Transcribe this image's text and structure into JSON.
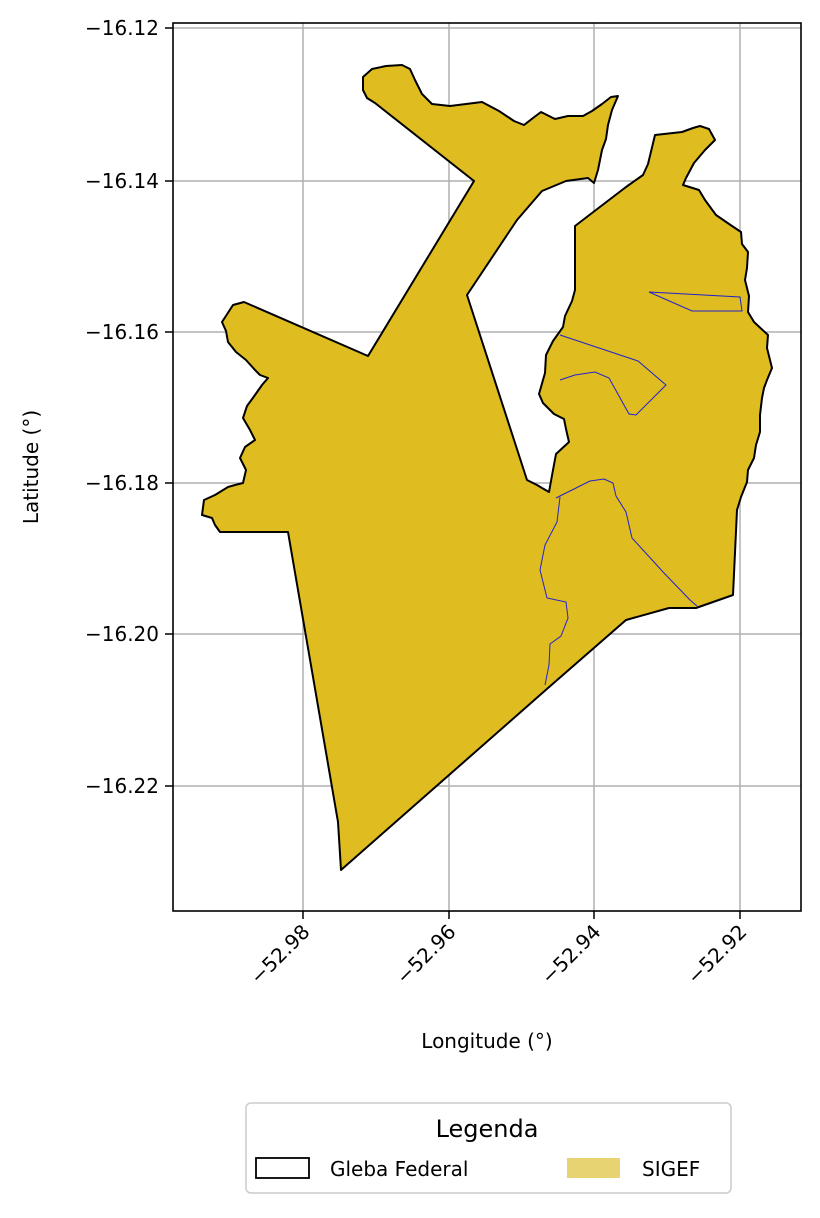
{
  "map": {
    "xlabel": "Longitude (°)",
    "ylabel": "Latitude (°)",
    "xlim": [
      -52.998,
      -52.912
    ],
    "ylim": [
      -16.237,
      -16.119
    ],
    "xticks": [
      -52.98,
      -52.96,
      -52.94,
      -52.92
    ],
    "yticks": [
      -16.12,
      -16.14,
      -16.16,
      -16.18,
      -16.2,
      -16.22
    ],
    "xtick_labels": [
      "−52.98",
      "−52.96",
      "−52.94",
      "−52.92"
    ],
    "ytick_labels": [
      "−16.12",
      "−16.14",
      "−16.16",
      "−16.18",
      "−16.20",
      "−16.22"
    ],
    "grid": true,
    "colors": {
      "sigef_fill": "#DFBC20",
      "gleba_edge": "#000000",
      "internal_lines": "#2222CC",
      "grid": "#b0b0b0",
      "legend_sigef_patch": "#E8D373"
    }
  },
  "legend": {
    "title": "Legenda",
    "items": [
      {
        "label": "Gleba Federal",
        "style": "outline"
      },
      {
        "label": "SIGEF",
        "style": "filled"
      }
    ]
  }
}
